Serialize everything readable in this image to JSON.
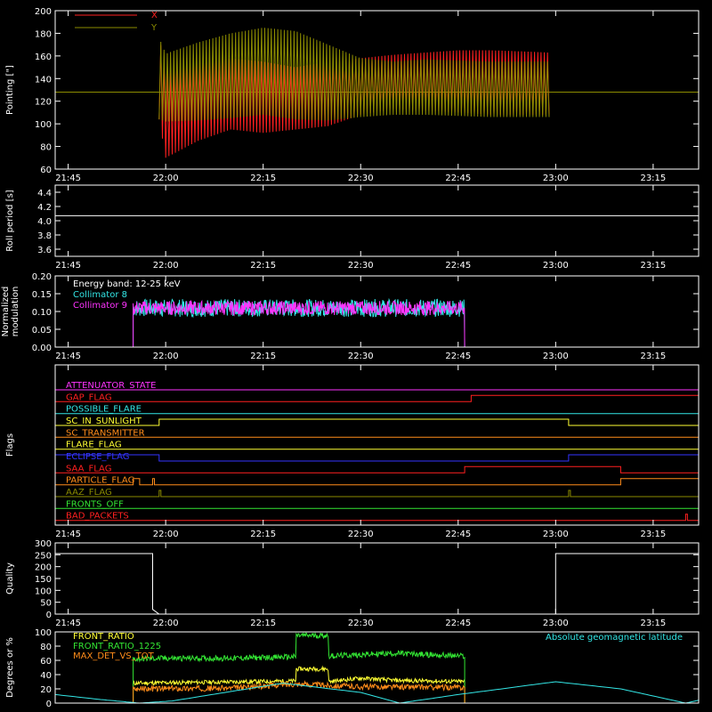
{
  "time_ticks": [
    "21:45",
    "22:00",
    "22:15",
    "22:30",
    "22:45",
    "23:00",
    "23:15"
  ],
  "chart_data": [
    {
      "id": "pointing",
      "type": "line",
      "ylabel": "Pointing [\"]",
      "ylim": [
        60,
        200
      ],
      "yticks": [
        60,
        80,
        100,
        120,
        140,
        160,
        180,
        200
      ],
      "baseline": 128,
      "series": [
        {
          "name": "X",
          "color": "#ff2020",
          "x": [
            "21:59",
            "22:00",
            "22:05",
            "22:10",
            "22:15",
            "22:20",
            "22:25",
            "22:30",
            "22:35",
            "22:40",
            "22:45",
            "22:50",
            "22:55",
            "22:59"
          ],
          "y_high": [
            176,
            150,
            155,
            158,
            155,
            150,
            155,
            158,
            161,
            163,
            165,
            165,
            164,
            163
          ],
          "y_low": [
            104,
            70,
            85,
            95,
            92,
            95,
            98,
            108,
            113,
            112,
            110,
            108,
            108,
            108
          ]
        },
        {
          "name": "Y",
          "color": "#8c8c00",
          "x": [
            "21:59",
            "22:00",
            "22:05",
            "22:10",
            "22:15",
            "22:20",
            "22:25",
            "22:30",
            "22:35",
            "22:40",
            "22:45",
            "22:50",
            "22:55",
            "22:59"
          ],
          "y_high": [
            176,
            162,
            172,
            180,
            185,
            182,
            170,
            158,
            155,
            157,
            156,
            155,
            155,
            155
          ],
          "y_low": [
            104,
            102,
            103,
            105,
            108,
            104,
            103,
            106,
            108,
            108,
            107,
            106,
            106,
            106
          ]
        }
      ]
    },
    {
      "id": "roll",
      "type": "line",
      "ylabel": "Roll period [s]",
      "ylim": [
        3.5,
        4.5
      ],
      "yticks": [
        3.6,
        3.8,
        4.0,
        4.2,
        4.4
      ],
      "series": [
        {
          "name": "",
          "color": "#ffffff",
          "x": [
            "21:43",
            "23:22"
          ],
          "y": [
            4.07,
            4.07
          ]
        }
      ]
    },
    {
      "id": "modulation",
      "type": "line",
      "ylabel": [
        "Normalized",
        "modulation"
      ],
      "ylim": [
        0,
        0.2
      ],
      "yticks": [
        0.0,
        0.05,
        0.1,
        0.15,
        0.2
      ],
      "annotation": "Energy band: 12-25 keV",
      "active": [
        "21:55",
        "22:46"
      ],
      "series": [
        {
          "name": "Collimator 8",
          "color": "#33e6e6",
          "mean": 0.11,
          "spread": 0.025
        },
        {
          "name": "Collimator 9",
          "color": "#ff33ff",
          "mean": 0.11,
          "spread": 0.02
        }
      ]
    },
    {
      "id": "flags",
      "type": "step",
      "ylabel": "Flags",
      "flags": [
        {
          "name": "ATTENUATOR_STATE",
          "color": "#ff33ff",
          "high": []
        },
        {
          "name": "GAP_FLAG",
          "color": "#ff2020",
          "high": [
            [
              "22:47",
              "23:22"
            ]
          ]
        },
        {
          "name": "POSSIBLE_FLARE",
          "color": "#33e6e6",
          "high": []
        },
        {
          "name": "SC_IN_SUNLIGHT",
          "color": "#ffff33",
          "high": [
            [
              "21:59",
              "23:02"
            ]
          ]
        },
        {
          "name": "SC_TRANSMITTER",
          "color": "#ff8c1a",
          "high": []
        },
        {
          "name": "FLARE_FLAG",
          "color": "#ffff33",
          "high": []
        },
        {
          "name": "ECLIPSE_FLAG",
          "color": "#3333ff",
          "high": [
            [
              "21:43",
              "21:59"
            ],
            [
              "23:02",
              "23:22"
            ]
          ]
        },
        {
          "name": "SAA_FLAG",
          "color": "#ff2020",
          "high": [
            [
              "22:46",
              "23:10"
            ]
          ]
        },
        {
          "name": "PARTICLE_FLAG",
          "color": "#ff8c1a",
          "high": [
            [
              "21:55",
              "21:56"
            ],
            [
              "21:58",
              "21:58"
            ],
            [
              "23:10",
              "23:22"
            ]
          ]
        },
        {
          "name": "AAZ_FLAG",
          "color": "#8c8c00",
          "high": [
            [
              "21:59",
              "21:59"
            ],
            [
              "23:02",
              "23:02"
            ]
          ]
        },
        {
          "name": "FRONTS_OFF",
          "color": "#33e633",
          "high": []
        },
        {
          "name": "BAD_PACKETS",
          "color": "#ff2020",
          "high": [
            [
              "23:20",
              "23:20"
            ]
          ]
        }
      ]
    },
    {
      "id": "quality",
      "type": "line",
      "ylabel": "Quality",
      "ylim": [
        0,
        300
      ],
      "yticks": [
        0,
        50,
        100,
        150,
        200,
        250,
        300
      ],
      "series": [
        {
          "name": "",
          "color": "#ffffff",
          "x": [
            "21:43",
            "21:58",
            "21:58",
            "21:59",
            "21:59",
            "23:00",
            "23:00",
            "23:22"
          ],
          "y": [
            255,
            255,
            20,
            0,
            0,
            0,
            255,
            255
          ]
        }
      ]
    },
    {
      "id": "front_ratio",
      "type": "line",
      "ylabel": "Degrees or %",
      "ylim": [
        0,
        100
      ],
      "yticks": [
        0,
        20,
        40,
        60,
        80,
        100
      ],
      "annotation": "Absolute geomagnetic latitude",
      "series": [
        {
          "name": "FRONT_RATIO",
          "color": "#ffff33",
          "x": [
            "21:55",
            "22:20",
            "22:20",
            "22:25",
            "22:25",
            "22:30",
            "22:35",
            "22:46"
          ],
          "y": [
            28,
            31,
            48,
            48,
            30,
            35,
            32,
            30
          ]
        },
        {
          "name": "FRONT_RATIO_1225",
          "color": "#33e633",
          "x": [
            "21:55",
            "22:00",
            "22:10",
            "22:20",
            "22:20",
            "22:25",
            "22:25",
            "22:35",
            "22:46"
          ],
          "y": [
            62,
            63,
            63,
            65,
            95,
            95,
            66,
            70,
            66
          ]
        },
        {
          "name": "MAX_DET_VS_TOT",
          "color": "#ff8c1a",
          "x": [
            "21:55",
            "22:10",
            "22:20",
            "22:30",
            "22:46"
          ],
          "y": [
            20,
            21,
            27,
            23,
            22
          ]
        },
        {
          "name": "",
          "color": "#33e6e6",
          "x": [
            "21:43",
            "21:50",
            "21:56",
            "22:01",
            "22:18",
            "22:30",
            "22:36",
            "22:45",
            "23:00",
            "23:10",
            "23:20",
            "23:22"
          ],
          "y": [
            12,
            5,
            0,
            3,
            28,
            15,
            0,
            12,
            30,
            20,
            0,
            4
          ]
        }
      ]
    }
  ]
}
